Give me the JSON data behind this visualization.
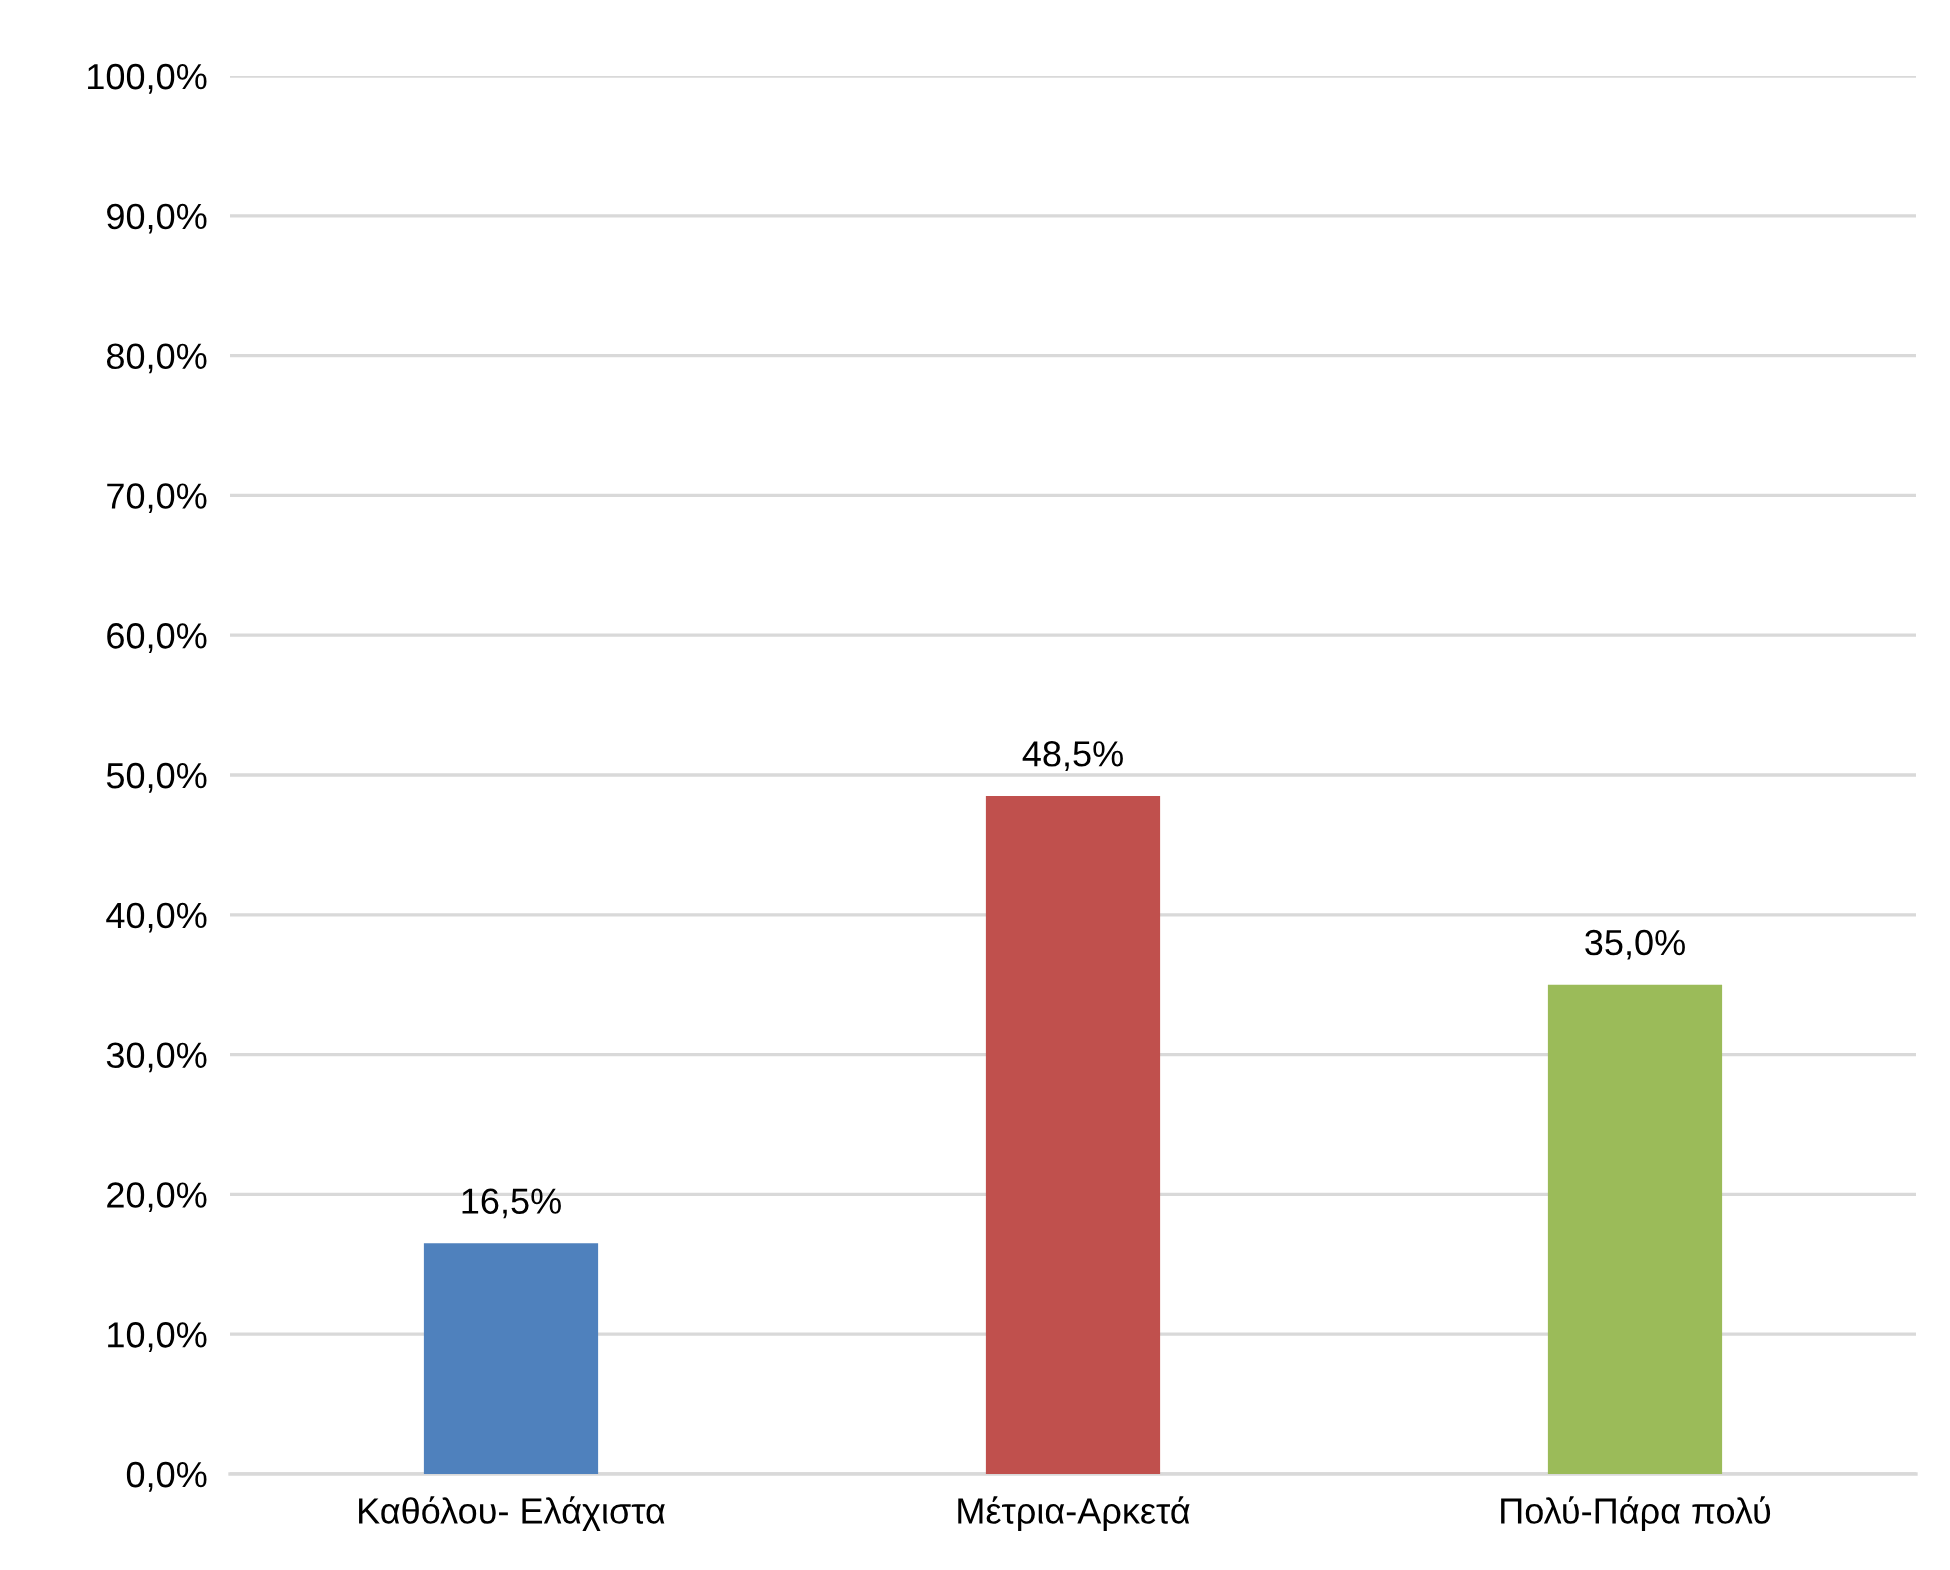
{
  "chart_data": {
    "type": "bar",
    "categories": [
      "Καθόλου- Ελάχιστα",
      "Μέτρια-Αρκετά",
      "Πολύ-Πάρα πολύ"
    ],
    "values": [
      16.5,
      48.5,
      35.0
    ],
    "colors": [
      "#4f81bd",
      "#c0504d",
      "#9bbb59"
    ],
    "value_labels": [
      "16,5%",
      "48,5%",
      "35,0%"
    ],
    "ylim": [
      0,
      100
    ],
    "yticks": [
      {
        "value": 0,
        "label": "0,0%"
      },
      {
        "value": 10,
        "label": "10,0%"
      },
      {
        "value": 20,
        "label": "20,0%"
      },
      {
        "value": 30,
        "label": "30,0%"
      },
      {
        "value": 40,
        "label": "40,0%"
      },
      {
        "value": 50,
        "label": "50,0%"
      },
      {
        "value": 60,
        "label": "60,0%"
      },
      {
        "value": 70,
        "label": "70,0%"
      },
      {
        "value": 80,
        "label": "80,0%"
      },
      {
        "value": 90,
        "label": "90,0%"
      },
      {
        "value": 100,
        "label": "100,0%"
      }
    ],
    "grid": "y"
  }
}
